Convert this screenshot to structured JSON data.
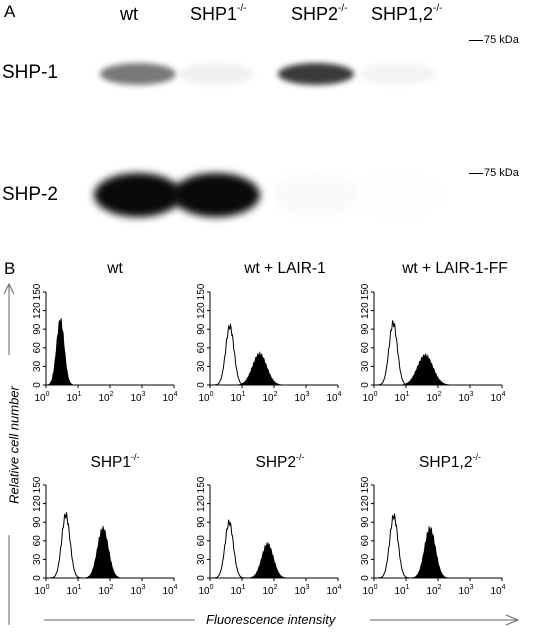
{
  "panel_a": {
    "letter": "A",
    "lanes": [
      {
        "base": "wt",
        "sup": ""
      },
      {
        "base": "SHP1",
        "sup": "-/-"
      },
      {
        "base": "SHP2",
        "sup": "-/-"
      },
      {
        "base": "SHP1,2",
        "sup": "-/-"
      }
    ],
    "rows": [
      {
        "label": "SHP-1",
        "marker": "75 kDa",
        "band_intensity": [
          0.55,
          0.06,
          0.8,
          0.05
        ]
      },
      {
        "label": "SHP-2",
        "marker": "75 kDa",
        "band_intensity": [
          1.0,
          1.0,
          0.02,
          0.01
        ]
      }
    ]
  },
  "panel_b": {
    "letter": "B",
    "y_axis_title": "Relative cell number",
    "x_axis_title": "Fluorescence  intensity",
    "y_ticks": [
      "0",
      "30",
      "60",
      "90",
      "120",
      "150"
    ],
    "x_tick_base": "10",
    "x_tick_exps": [
      "0",
      "1",
      "2",
      "3",
      "4"
    ],
    "plots": [
      {
        "title_base": "wt",
        "title_sup": "",
        "open_peak": null,
        "filled_peak": {
          "log_center": 0.45,
          "height": 105,
          "width": 0.12
        }
      },
      {
        "title_base": "wt + LAIR-1",
        "title_sup": "",
        "open_peak": {
          "log_center": 0.62,
          "height": 95,
          "width": 0.13
        },
        "filled_peak": {
          "log_center": 1.55,
          "height": 50,
          "width": 0.22
        }
      },
      {
        "title_base": "wt + LAIR-1-FF",
        "title_sup": "",
        "open_peak": {
          "log_center": 0.6,
          "height": 100,
          "width": 0.13
        },
        "filled_peak": {
          "log_center": 1.6,
          "height": 48,
          "width": 0.24
        }
      },
      {
        "title_base": "SHP1",
        "title_sup": "-/-",
        "open_peak": {
          "log_center": 0.62,
          "height": 102,
          "width": 0.13
        },
        "filled_peak": {
          "log_center": 1.78,
          "height": 80,
          "width": 0.17
        }
      },
      {
        "title_base": "SHP2",
        "title_sup": "-/-",
        "open_peak": {
          "log_center": 0.6,
          "height": 90,
          "width": 0.13
        },
        "filled_peak": {
          "log_center": 1.8,
          "height": 55,
          "width": 0.18
        }
      },
      {
        "title_base": "SHP1,2",
        "title_sup": "-/-",
        "open_peak": {
          "log_center": 0.62,
          "height": 100,
          "width": 0.13
        },
        "filled_peak": {
          "log_center": 1.75,
          "height": 80,
          "width": 0.17
        }
      }
    ]
  }
}
